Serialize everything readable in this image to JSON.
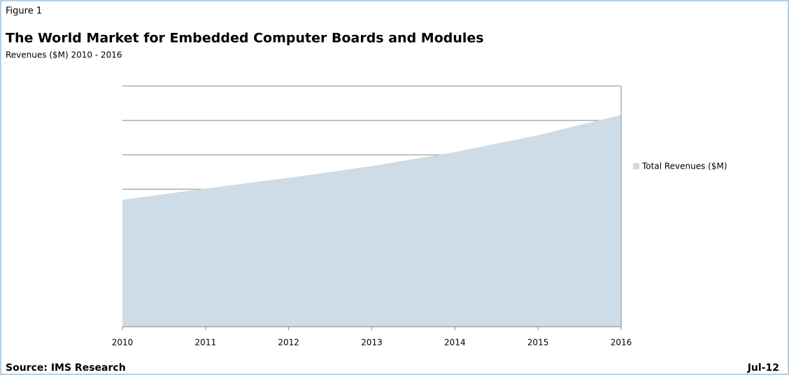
{
  "chart_data": {
    "type": "area",
    "label": "Figure 1",
    "title": "The World Market for Embedded Computer Boards and Modules",
    "subtitle": "Revenues ($M) 2010 - 2016",
    "categories": [
      "2010",
      "2011",
      "2012",
      "2013",
      "2014",
      "2015",
      "2016"
    ],
    "series": [
      {
        "name": "Total Revenues ($M)",
        "color": "#cddce6",
        "values": [
          3.69,
          4.02,
          4.33,
          4.67,
          5.08,
          5.57,
          6.16
        ]
      }
    ],
    "ylim": [
      0,
      7
    ],
    "yticks": [
      0,
      1,
      2,
      3,
      4,
      5,
      6,
      7
    ],
    "grid": true,
    "legend": "right",
    "source": "Source: IMS Research",
    "date": "Jul-12"
  }
}
